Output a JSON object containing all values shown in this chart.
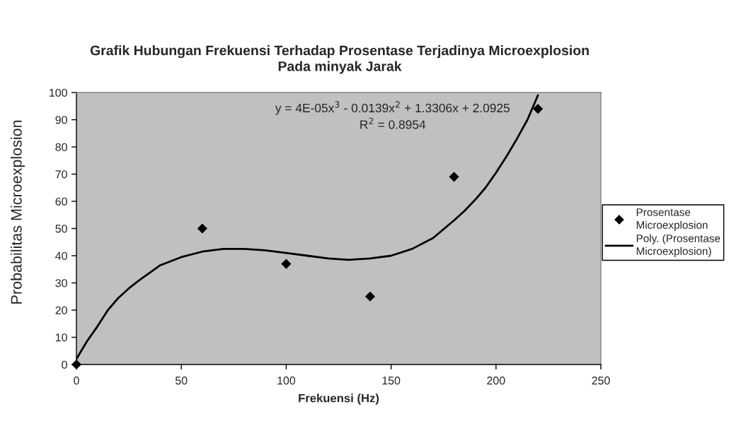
{
  "chart_data": {
    "type": "scatter",
    "title": "Grafik Hubungan Frekuensi Terhadap Prosentase Terjadinya Microexplosion\nPada minyak Jarak",
    "xlabel": "Frekuensi (Hz)",
    "ylabel": "Probabilitas Microexplosion",
    "annotations": [
      "y = 4E-05x$^{3}$ - 0.0139x$^{2}$ + 1.3306x + 2.0925",
      "R$^{2}$ = 0.8954"
    ],
    "x": [
      0,
      60,
      100,
      140,
      180,
      220
    ],
    "series": [
      {
        "name": "Prosentase\nMicroexplosion",
        "marker": "diamond",
        "color": "#000000",
        "values": [
          0,
          50,
          37,
          25,
          69,
          94
        ]
      },
      {
        "name": "Poly. (Prosentase\nMicroexplosion)",
        "type": "line",
        "marker": "none",
        "line_style": "solid",
        "color": "#000000",
        "x": [
          0,
          5,
          10,
          15,
          20,
          25,
          30,
          40,
          50,
          60,
          70,
          80,
          90,
          100,
          110,
          120,
          130,
          140,
          150,
          160,
          170,
          180,
          185,
          190,
          195,
          200,
          205,
          210,
          215,
          220
        ],
        "values": [
          2,
          8.5,
          14,
          20,
          24.5,
          28,
          31,
          36.5,
          39.5,
          41.5,
          42.5,
          42.5,
          42,
          41,
          40,
          39,
          38.5,
          39,
          40,
          42.5,
          46.5,
          53,
          56.5,
          60.5,
          65,
          70.5,
          76.5,
          83,
          90,
          99
        ]
      }
    ],
    "xlim": [
      0,
      250
    ],
    "xticks": [
      0,
      50,
      100,
      150,
      200,
      250
    ],
    "ylim": [
      0,
      100
    ],
    "yticks": [
      0,
      10,
      20,
      30,
      40,
      50,
      60,
      70,
      80,
      90,
      100
    ],
    "legend": "right"
  }
}
